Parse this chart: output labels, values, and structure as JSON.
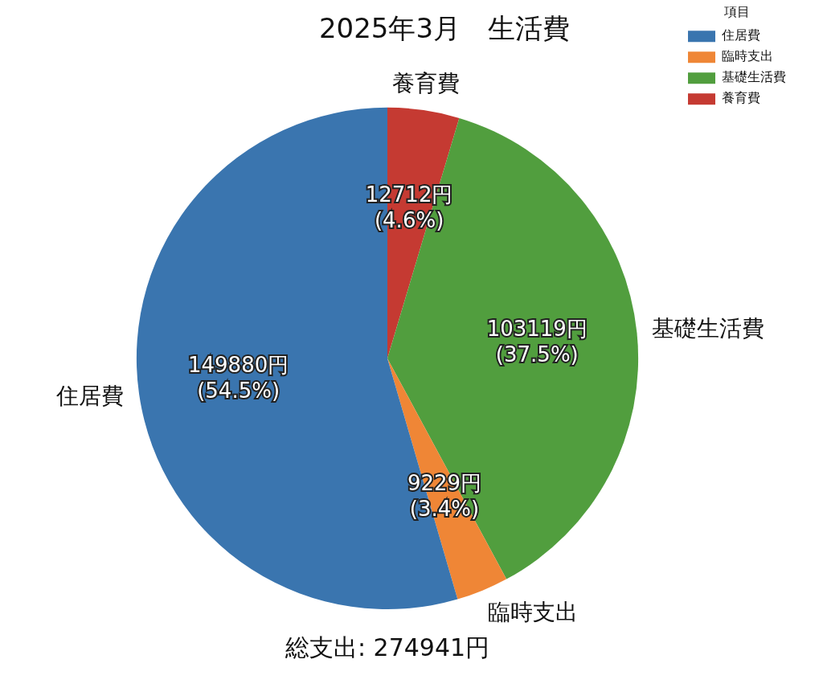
{
  "chart_data": {
    "type": "pie",
    "title": "2025年3月　生活費",
    "legend_title": "項目",
    "legend": "top right",
    "categories": [
      "住居費",
      "臨時支出",
      "基礎生活費",
      "養育費"
    ],
    "values": [
      149880,
      9229,
      103119,
      12712
    ],
    "colors": [
      "#3a75af",
      "#ef8636",
      "#519e3e",
      "#c53a32"
    ],
    "value_labels": [
      "149880円\n(54.5%)",
      "9229円\n(3.4%)",
      "103119円\n(37.5%)",
      "12712円\n(4.6%)"
    ],
    "annotations": [
      "総支出: 274941円"
    ]
  }
}
